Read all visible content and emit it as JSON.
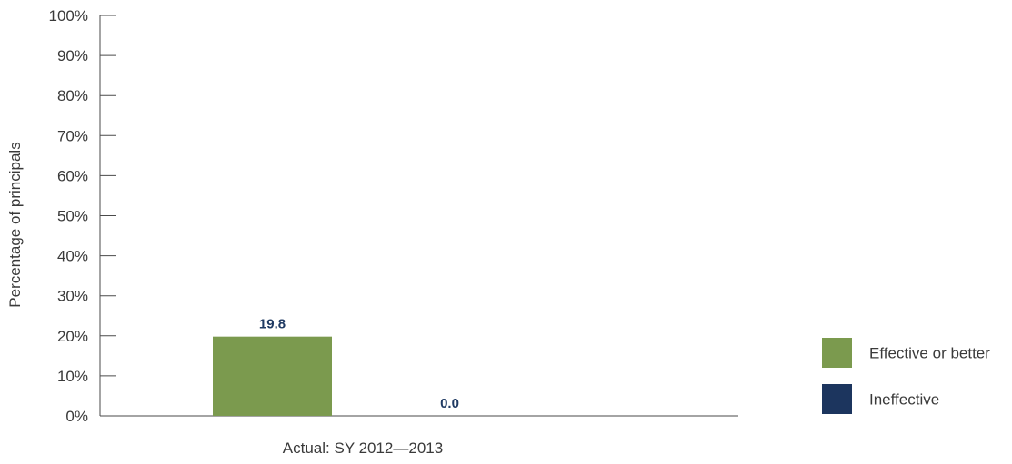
{
  "chart_data": {
    "type": "bar",
    "categories": [
      "Actual: SY 2012—2013"
    ],
    "series": [
      {
        "name": "Effective or better",
        "values": [
          19.8
        ],
        "color": "#7b9a4e"
      },
      {
        "name": "Ineffective",
        "values": [
          0.0
        ],
        "color": "#1c355e"
      }
    ],
    "data_labels": [
      "19.8",
      "0.0"
    ],
    "ylabel": "Percentage of principals",
    "xlabel": "",
    "ylim": [
      0,
      100
    ],
    "yticks": [
      0,
      10,
      20,
      30,
      40,
      50,
      60,
      70,
      80,
      90,
      100
    ],
    "ytick_labels": [
      "0%",
      "10%",
      "20%",
      "30%",
      "40%",
      "50%",
      "60%",
      "70%",
      "80%",
      "90%",
      "100%"
    ],
    "grid": false,
    "legend_position": "right"
  }
}
